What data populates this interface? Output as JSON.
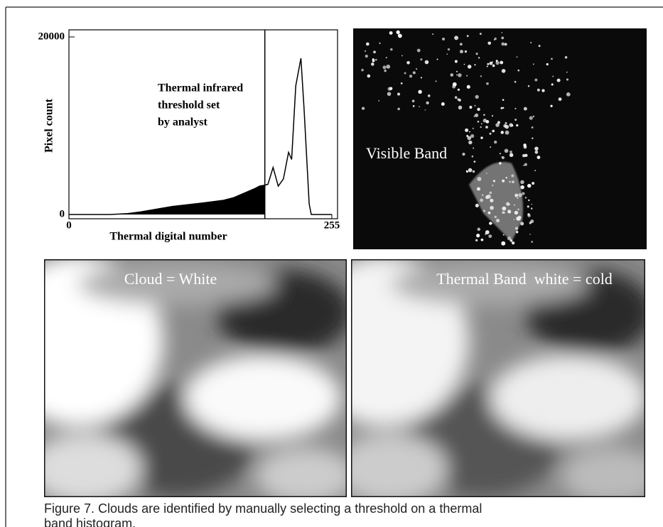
{
  "chart_data": {
    "type": "histogram",
    "xlabel": "Thermal digital number",
    "ylabel": "Pixel count",
    "annotation": [
      "Thermal infrared",
      "threshold set",
      "by analyst"
    ],
    "threshold": 190,
    "xlim": [
      0,
      255
    ],
    "ylim": [
      0,
      20000
    ],
    "xticks": [
      0,
      255
    ],
    "yticks": [
      0,
      20000
    ],
    "fill_color": "#000000",
    "line_color": "#000000",
    "series": [
      {
        "name": "Pixel count",
        "x": [
          0,
          40,
          57,
          70,
          85,
          100,
          115,
          130,
          150,
          160,
          170,
          180,
          185,
          190,
          193,
          198,
          203,
          208,
          213,
          216,
          220,
          225,
          228,
          233,
          235,
          255
        ],
        "values": [
          0,
          0,
          100,
          300,
          600,
          900,
          1100,
          1300,
          1600,
          1900,
          2400,
          2900,
          3200,
          3300,
          3400,
          5300,
          3200,
          4000,
          7000,
          6200,
          14500,
          17600,
          12000,
          1200,
          0,
          0
        ]
      }
    ]
  },
  "images": [
    {
      "label": "Visible Band"
    },
    {
      "label": "Cloud = White"
    },
    {
      "label": "Thermal Band  white = cold"
    }
  ],
  "caption": [
    "Figure 7. Clouds are identified by manually selecting a threshold on a thermal",
    "band histogram."
  ]
}
